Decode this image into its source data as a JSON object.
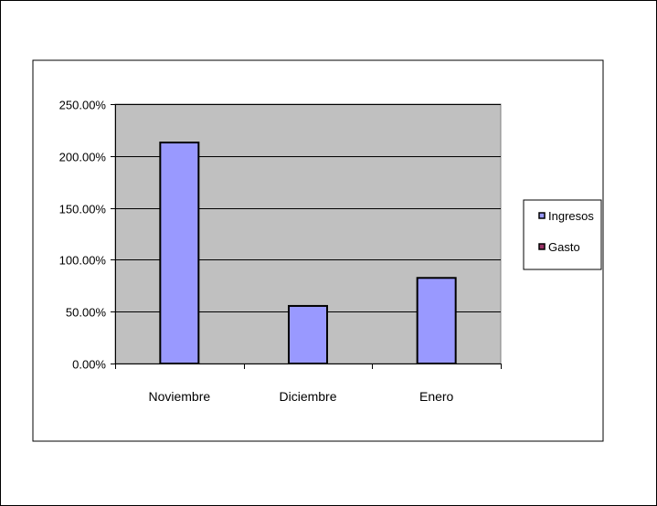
{
  "chart_data": {
    "type": "bar",
    "categories": [
      "Noviembre",
      "Diciembre",
      "Enero"
    ],
    "series": [
      {
        "name": "Ingresos",
        "values": [
          213.0,
          55.5,
          82.5
        ],
        "color": "#9999ff"
      },
      {
        "name": "Gasto",
        "values": [
          null,
          null,
          null
        ],
        "color": "#993366"
      }
    ],
    "y_ticks": [
      "0.00%",
      "50.00%",
      "100.00%",
      "150.00%",
      "200.00%",
      "250.00%"
    ],
    "ylim": [
      0,
      250
    ],
    "y_unit": "percent",
    "grid": true,
    "plot_background": "#c0c0c0",
    "legend": {
      "position": "right",
      "entries": [
        "Ingresos",
        "Gasto"
      ]
    },
    "title": "",
    "xlabel": "",
    "ylabel": ""
  }
}
